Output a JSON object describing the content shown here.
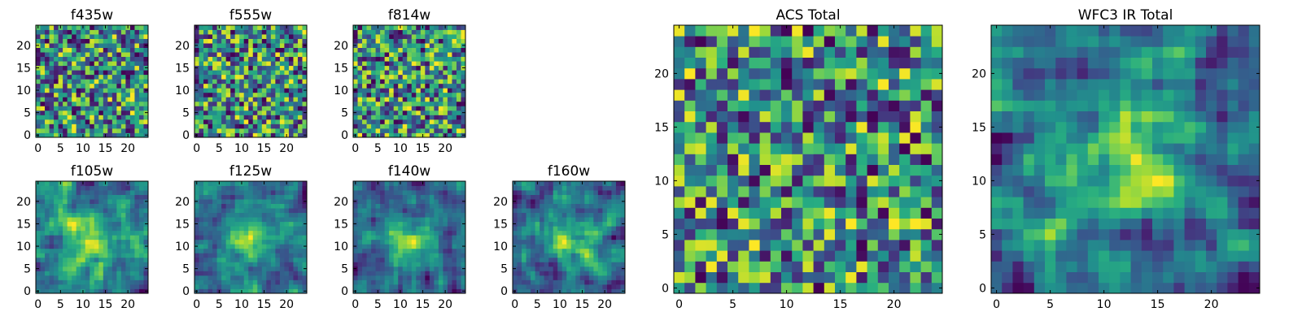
{
  "chart_data": [
    {
      "type": "heatmap",
      "title": "f435w",
      "size": 25,
      "seed": 11,
      "xticks": [
        0,
        5,
        10,
        15,
        20
      ],
      "yticks": [
        0,
        5,
        10,
        15,
        20
      ],
      "xlim": [
        0,
        25
      ],
      "ylim": [
        0,
        25
      ],
      "colormap": "viridis"
    },
    {
      "type": "heatmap",
      "title": "f555w",
      "size": 25,
      "seed": 23,
      "xticks": [
        0,
        5,
        10,
        15,
        20
      ],
      "yticks": [
        0,
        5,
        10,
        15,
        20
      ],
      "xlim": [
        0,
        25
      ],
      "ylim": [
        0,
        25
      ],
      "colormap": "viridis"
    },
    {
      "type": "heatmap",
      "title": "f814w",
      "size": 25,
      "seed": 37,
      "xticks": [
        0,
        5,
        10,
        15,
        20
      ],
      "yticks": [
        0,
        5,
        10,
        15,
        20
      ],
      "xlim": [
        0,
        25
      ],
      "ylim": [
        0,
        25
      ],
      "colormap": "viridis"
    },
    {
      "type": "heatmap",
      "title": "f105w",
      "size": 25,
      "seed": 41,
      "xticks": [
        0,
        5,
        10,
        15,
        20
      ],
      "yticks": [
        0,
        5,
        10,
        15,
        20
      ],
      "xlim": [
        0,
        25
      ],
      "ylim": [
        0,
        25
      ],
      "colormap": "viridis",
      "central_source": true
    },
    {
      "type": "heatmap",
      "title": "f125w",
      "size": 25,
      "seed": 53,
      "xticks": [
        0,
        5,
        10,
        15,
        20
      ],
      "yticks": [
        0,
        5,
        10,
        15,
        20
      ],
      "xlim": [
        0,
        25
      ],
      "ylim": [
        0,
        25
      ],
      "colormap": "viridis",
      "central_source": true
    },
    {
      "type": "heatmap",
      "title": "f140w",
      "size": 25,
      "seed": 67,
      "xticks": [
        0,
        5,
        10,
        15,
        20
      ],
      "yticks": [
        0,
        5,
        10,
        15,
        20
      ],
      "xlim": [
        0,
        25
      ],
      "ylim": [
        0,
        25
      ],
      "colormap": "viridis",
      "central_source": true
    },
    {
      "type": "heatmap",
      "title": "f160w",
      "size": 25,
      "seed": 79,
      "xticks": [
        0,
        5,
        10,
        15,
        20
      ],
      "yticks": [
        0,
        5,
        10,
        15,
        20
      ],
      "xlim": [
        0,
        25
      ],
      "ylim": [
        0,
        25
      ],
      "colormap": "viridis",
      "central_source": true
    },
    {
      "type": "heatmap",
      "title": "ACS Total",
      "size": 25,
      "seed": 97,
      "xticks": [
        0,
        5,
        10,
        15,
        20
      ],
      "yticks": [
        0,
        5,
        10,
        15,
        20
      ],
      "xlim": [
        0,
        25
      ],
      "ylim": [
        0,
        25
      ],
      "colormap": "viridis"
    },
    {
      "type": "heatmap",
      "title": "WFC3 IR Total",
      "size": 25,
      "seed": 131,
      "xticks": [
        0,
        5,
        10,
        15,
        20
      ],
      "yticks": [
        0,
        5,
        10,
        15,
        20
      ],
      "xlim": [
        0,
        25
      ],
      "ylim": [
        0,
        25
      ],
      "colormap": "viridis",
      "central_source": true
    }
  ]
}
